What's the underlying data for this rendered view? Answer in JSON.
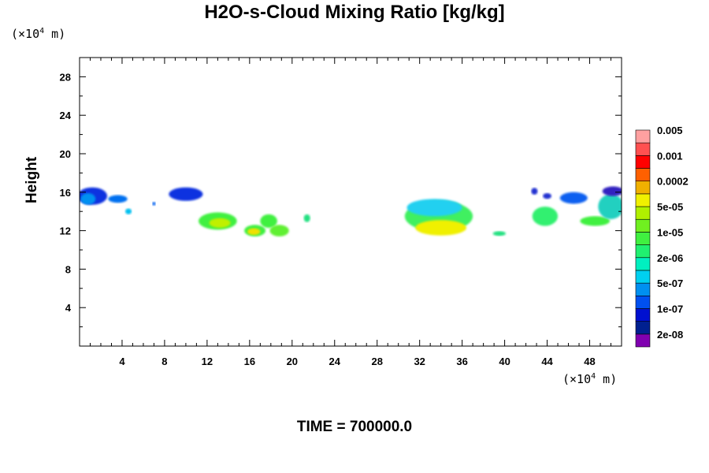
{
  "chart_data": {
    "type": "heatmap",
    "title": "H2O-s-Cloud Mixing Ratio [kg/kg]",
    "ylabel": "Height",
    "x_unit": {
      "prefix": "(×10",
      "exp": "4",
      "suffix": " m)"
    },
    "y_unit": {
      "prefix": "(×10",
      "exp": "4",
      "suffix": " m)"
    },
    "xlim": [
      0,
      51
    ],
    "ylim": [
      0,
      30
    ],
    "x_ticks": [
      4,
      8,
      12,
      16,
      20,
      24,
      28,
      32,
      36,
      40,
      44,
      48
    ],
    "y_ticks": [
      4,
      8,
      12,
      16,
      20,
      24,
      28
    ],
    "time_label": "TIME = 700000.0",
    "colorbar": {
      "colors": [
        "#8000b0",
        "#002090",
        "#0010d0",
        "#0050f0",
        "#0090f0",
        "#00d0f0",
        "#00f0c0",
        "#20f070",
        "#40f040",
        "#70f020",
        "#b0f000",
        "#f0f000",
        "#f0b000",
        "#ff6000",
        "#ff0000",
        "#ff5050",
        "#ffa0a0"
      ],
      "labels": [
        "2e-08",
        "1e-07",
        "5e-07",
        "2e-06",
        "1e-05",
        "5e-05",
        "0.0002",
        "0.001",
        "0.005"
      ]
    },
    "clouds": [
      {
        "x": 1.2,
        "y": 15.6,
        "rx": 1.4,
        "ry": 0.9,
        "color": "#1030e0"
      },
      {
        "x": 0.8,
        "y": 15.3,
        "rx": 0.7,
        "ry": 0.6,
        "color": "#0090f0"
      },
      {
        "x": 3.6,
        "y": 15.3,
        "rx": 0.9,
        "ry": 0.4,
        "color": "#0070f0"
      },
      {
        "x": 4.6,
        "y": 14.0,
        "rx": 0.3,
        "ry": 0.3,
        "color": "#00c0f0"
      },
      {
        "x": 7.0,
        "y": 14.8,
        "rx": 0.15,
        "ry": 0.2,
        "color": "#0060f0"
      },
      {
        "x": 10.0,
        "y": 15.8,
        "rx": 1.6,
        "ry": 0.7,
        "color": "#1030e0"
      },
      {
        "x": 13.0,
        "y": 13.0,
        "rx": 1.8,
        "ry": 0.9,
        "color": "#40f040"
      },
      {
        "x": 13.2,
        "y": 12.8,
        "rx": 1.0,
        "ry": 0.5,
        "color": "#c0f000"
      },
      {
        "x": 16.5,
        "y": 12.0,
        "rx": 1.0,
        "ry": 0.6,
        "color": "#40f040"
      },
      {
        "x": 16.4,
        "y": 11.9,
        "rx": 0.6,
        "ry": 0.35,
        "color": "#f0e000"
      },
      {
        "x": 17.8,
        "y": 13.0,
        "rx": 0.8,
        "ry": 0.7,
        "color": "#40f040"
      },
      {
        "x": 18.8,
        "y": 12.0,
        "rx": 0.9,
        "ry": 0.6,
        "color": "#60f030"
      },
      {
        "x": 21.4,
        "y": 13.3,
        "rx": 0.3,
        "ry": 0.4,
        "color": "#20e080"
      },
      {
        "x": 33.8,
        "y": 13.5,
        "rx": 3.2,
        "ry": 1.6,
        "color": "#40f060"
      },
      {
        "x": 33.4,
        "y": 14.4,
        "rx": 2.6,
        "ry": 0.9,
        "color": "#20d0f0"
      },
      {
        "x": 34.0,
        "y": 12.3,
        "rx": 2.4,
        "ry": 0.8,
        "color": "#f0f000"
      },
      {
        "x": 39.5,
        "y": 11.7,
        "rx": 0.6,
        "ry": 0.25,
        "color": "#20e080"
      },
      {
        "x": 42.8,
        "y": 16.1,
        "rx": 0.3,
        "ry": 0.35,
        "color": "#2030d0"
      },
      {
        "x": 44.0,
        "y": 15.6,
        "rx": 0.4,
        "ry": 0.3,
        "color": "#2030d0"
      },
      {
        "x": 43.8,
        "y": 13.5,
        "rx": 1.2,
        "ry": 1.0,
        "color": "#30f070"
      },
      {
        "x": 46.5,
        "y": 15.4,
        "rx": 1.3,
        "ry": 0.6,
        "color": "#1060f0"
      },
      {
        "x": 48.5,
        "y": 13.0,
        "rx": 1.4,
        "ry": 0.5,
        "color": "#40f040"
      },
      {
        "x": 50.0,
        "y": 14.5,
        "rx": 1.2,
        "ry": 1.3,
        "color": "#20d0c0"
      },
      {
        "x": 50.2,
        "y": 16.1,
        "rx": 1.0,
        "ry": 0.5,
        "color": "#3020c0"
      }
    ]
  }
}
